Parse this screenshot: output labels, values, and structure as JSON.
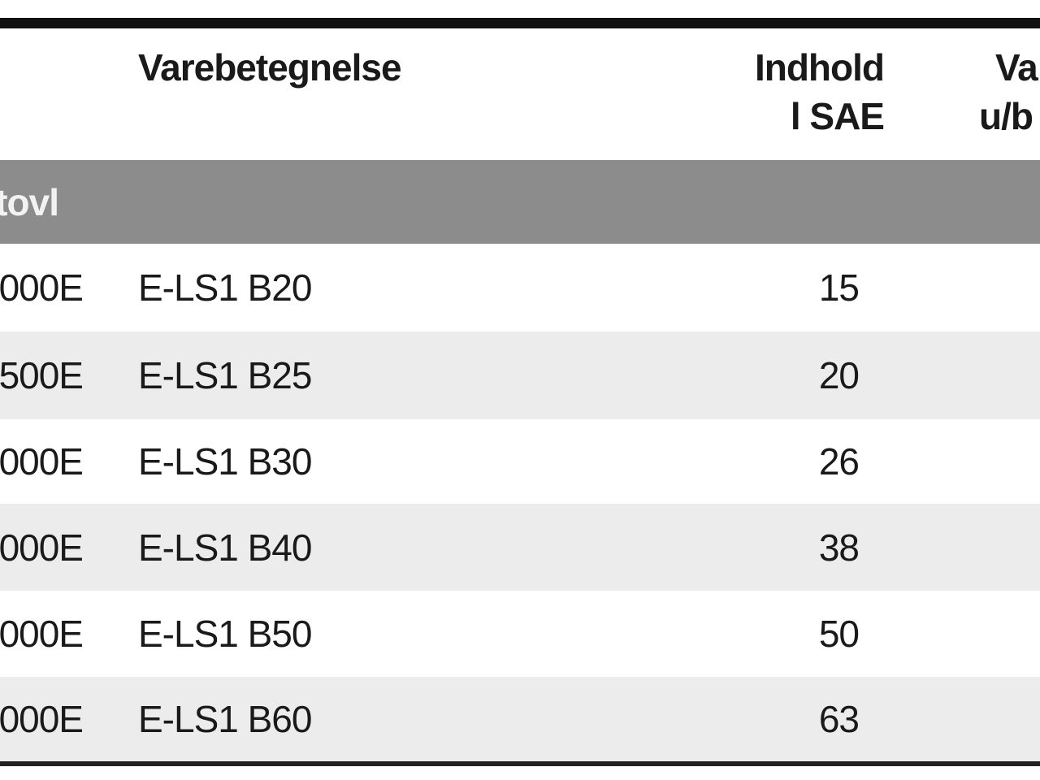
{
  "table": {
    "header": {
      "col1": "Varebetegnelse",
      "col2": [
        "Indhold",
        "l SAE"
      ],
      "col3": [
        "Va",
        "u/b"
      ]
    },
    "group": "tovl",
    "rows": [
      [
        "000E",
        "E-LS1 B20",
        15
      ],
      [
        "500E",
        "E-LS1 B25",
        20
      ],
      [
        "000E",
        "E-LS1 B30",
        26
      ],
      [
        "000E",
        "E-LS1 B40",
        38
      ],
      [
        "000E",
        "E-LS1 B50",
        50
      ],
      [
        "000E",
        "E-LS1 B60",
        63
      ]
    ]
  }
}
